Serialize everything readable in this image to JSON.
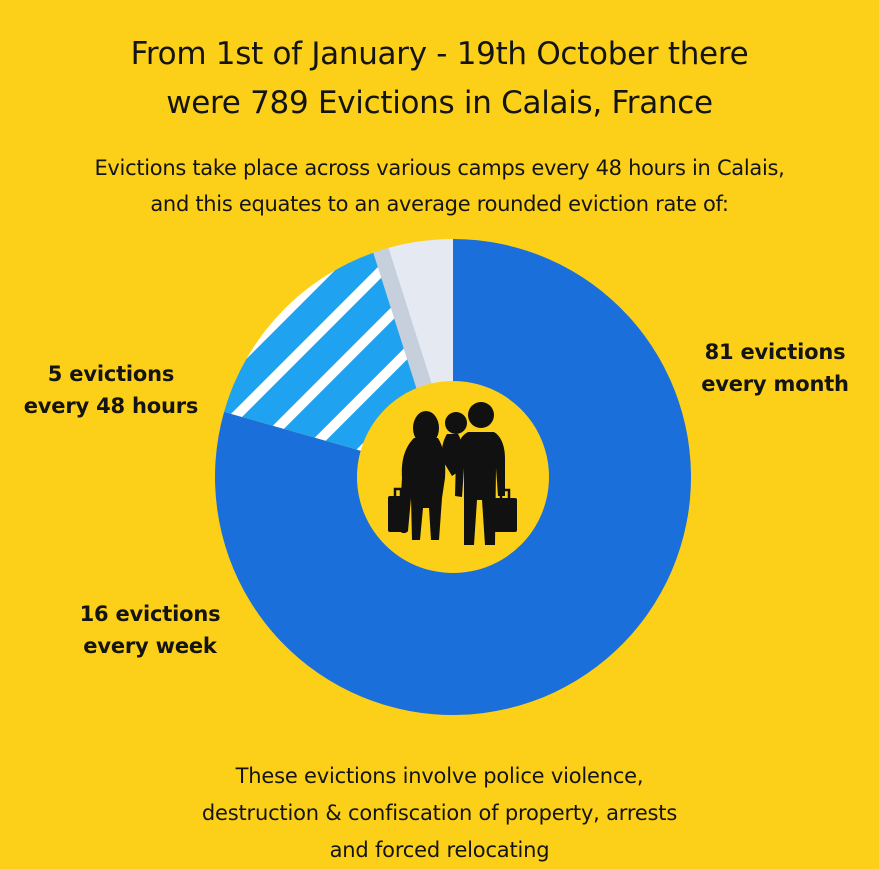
{
  "header": {
    "title_line1": "From 1st of January - 19th October there",
    "title_line2": "were 789 Evictions in Calais, France",
    "subtitle_line1": "Evictions take place across various camps every 48 hours in Calais,",
    "subtitle_line2": "and this equates to an average rounded eviction rate of:"
  },
  "chart_data": {
    "type": "pie",
    "variant": "donut",
    "categories": [
      "81 evictions every month",
      "16 evictions every week",
      "5 evictions every 48 hours"
    ],
    "values": [
      81,
      16,
      5
    ],
    "slices": [
      {
        "label_line1": "81 evictions",
        "label_line2": "every month",
        "value": 81,
        "color": "#1a6fdb",
        "pattern": "solid"
      },
      {
        "label_line1": "16 evictions",
        "label_line2": "every week",
        "value": 16,
        "color": "#1fa3f0",
        "pattern": "white-diagonal-stripes"
      },
      {
        "label_line1": "5 evictions",
        "label_line2": "every 48 hours",
        "value": 5,
        "color": "#e4e9f2",
        "pattern": "solid"
      }
    ],
    "center_icon": "family-with-luggage-icon",
    "center_color": "#fcd018"
  },
  "footer": {
    "line1": "These evictions involve police violence,",
    "line2": "destruction & confiscation of property, arrests",
    "line3": "and forced relocating"
  }
}
